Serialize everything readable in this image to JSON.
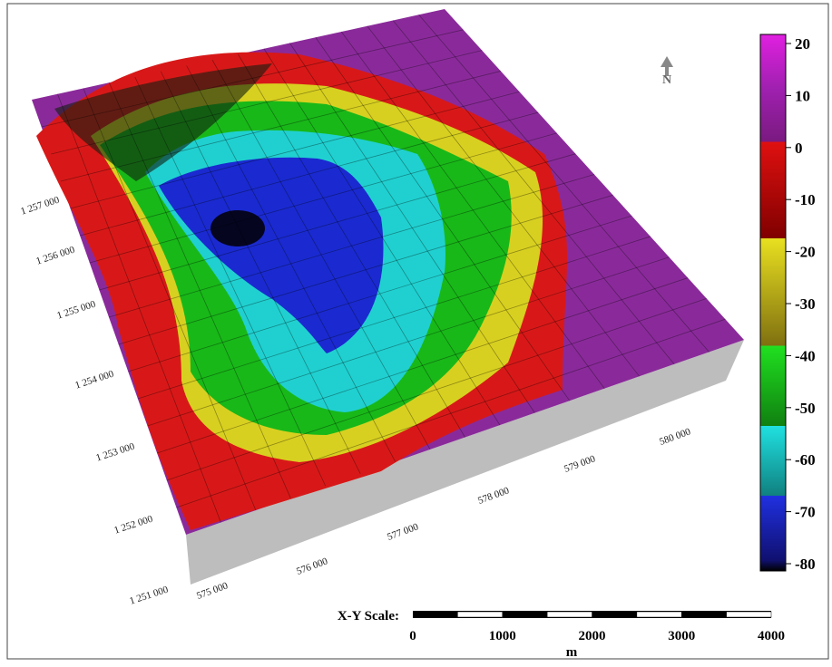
{
  "north": "N",
  "colorbar": {
    "ticks": [
      20,
      10,
      0,
      -10,
      -20,
      -30,
      -40,
      -50,
      -60,
      -70,
      -80
    ]
  },
  "x_axis_labels": [
    "575 000",
    "576 000",
    "577 000",
    "578 000",
    "579 000",
    "580 000"
  ],
  "y_axis_labels": [
    "1 251 000",
    "1 252 000",
    "1 253 000",
    "1 254 000",
    "1 255 000",
    "1 256 000",
    "1 257 000"
  ],
  "scale_bar": {
    "label": "X-Y Scale:",
    "ticks": [
      0,
      1000,
      2000,
      3000,
      4000
    ],
    "unit": "m"
  }
}
